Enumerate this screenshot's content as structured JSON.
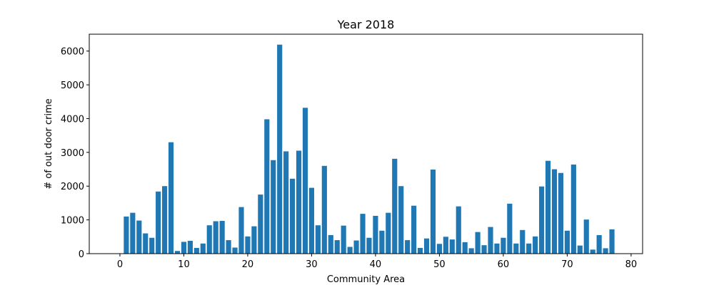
{
  "chart_data": {
    "type": "bar",
    "title": "Year 2018",
    "xlabel": "Community Area",
    "ylabel": "# of out door crime",
    "xlim": [
      -4.8,
      81.8
    ],
    "ylim": [
      0,
      6500
    ],
    "xticks": [
      0,
      10,
      20,
      30,
      40,
      50,
      60,
      70,
      80
    ],
    "yticks": [
      0,
      1000,
      2000,
      3000,
      4000,
      5000,
      6000
    ],
    "grid": false,
    "color": "#1f77b4",
    "x": [
      1,
      2,
      3,
      4,
      5,
      6,
      7,
      8,
      9,
      10,
      11,
      12,
      13,
      14,
      15,
      16,
      17,
      18,
      19,
      20,
      21,
      22,
      23,
      24,
      25,
      26,
      27,
      28,
      29,
      30,
      31,
      32,
      33,
      34,
      35,
      36,
      37,
      38,
      39,
      40,
      41,
      42,
      43,
      44,
      45,
      46,
      47,
      48,
      49,
      50,
      51,
      52,
      53,
      54,
      55,
      56,
      57,
      58,
      59,
      60,
      61,
      62,
      63,
      64,
      65,
      66,
      67,
      68,
      69,
      70,
      71,
      72,
      73,
      74,
      75,
      76,
      77
    ],
    "values": [
      1100,
      1210,
      980,
      600,
      470,
      1840,
      2000,
      3300,
      80,
      350,
      380,
      170,
      300,
      840,
      960,
      970,
      400,
      180,
      1380,
      510,
      810,
      1750,
      3980,
      2770,
      6190,
      3030,
      2220,
      3050,
      4320,
      1950,
      840,
      2600,
      550,
      400,
      830,
      200,
      390,
      1180,
      470,
      1120,
      680,
      1210,
      2810,
      2000,
      400,
      1420,
      170,
      450,
      2490,
      290,
      500,
      420,
      1400,
      340,
      160,
      640,
      250,
      790,
      300,
      470,
      1480,
      300,
      700,
      300,
      510,
      1990,
      2750,
      2500,
      2390,
      680,
      2640,
      240,
      1010,
      120,
      550,
      160,
      720
    ]
  }
}
